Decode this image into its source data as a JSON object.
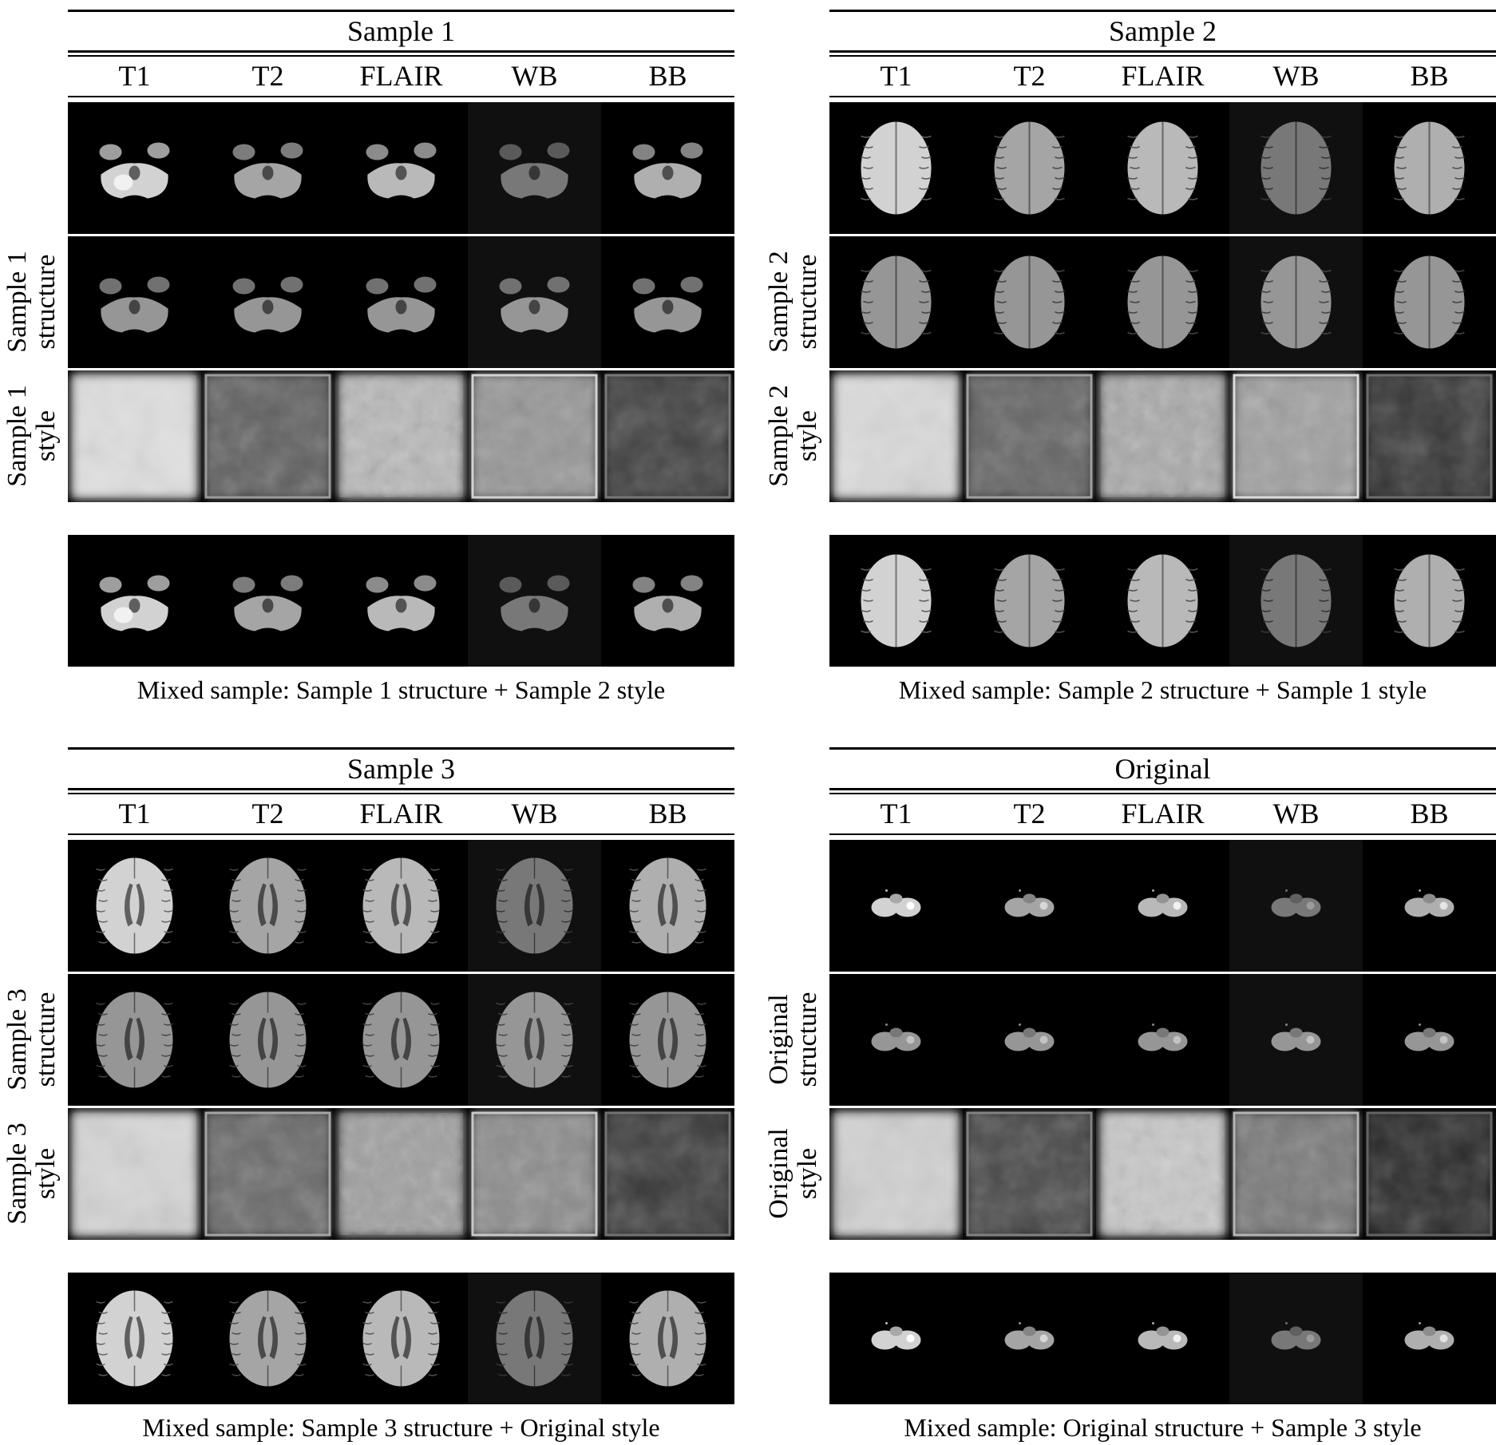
{
  "columns": [
    "T1",
    "T2",
    "FLAIR",
    "WB",
    "BB"
  ],
  "panels": [
    {
      "title": "Sample 1",
      "anatomy": "cerebellum",
      "row_labels": {
        "structure": [
          "Sample 1",
          "structure"
        ],
        "style": [
          "Sample 1",
          "style"
        ]
      },
      "caption": "Mixed sample: Sample 1 structure + Sample 2 style"
    },
    {
      "title": "Sample 2",
      "anatomy": "upper-axial",
      "row_labels": {
        "structure": [
          "Sample 2",
          "structure"
        ],
        "style": [
          "Sample 2",
          "style"
        ]
      },
      "caption": "Mixed sample: Sample 2 structure + Sample 1 style"
    },
    {
      "title": "Sample 3",
      "anatomy": "mid-axial",
      "row_labels": {
        "structure": [
          "Sample 3",
          "structure"
        ],
        "style": [
          "Sample 3",
          "style"
        ]
      },
      "caption": "Mixed sample: Sample 3 structure + Original style"
    },
    {
      "title": "Original",
      "anatomy": "small-cerebellum",
      "row_labels": {
        "structure": [
          "Original",
          "structure"
        ],
        "style": [
          "Original",
          "style"
        ]
      },
      "caption": "Mixed sample: Original structure + Sample 3 style"
    }
  ]
}
